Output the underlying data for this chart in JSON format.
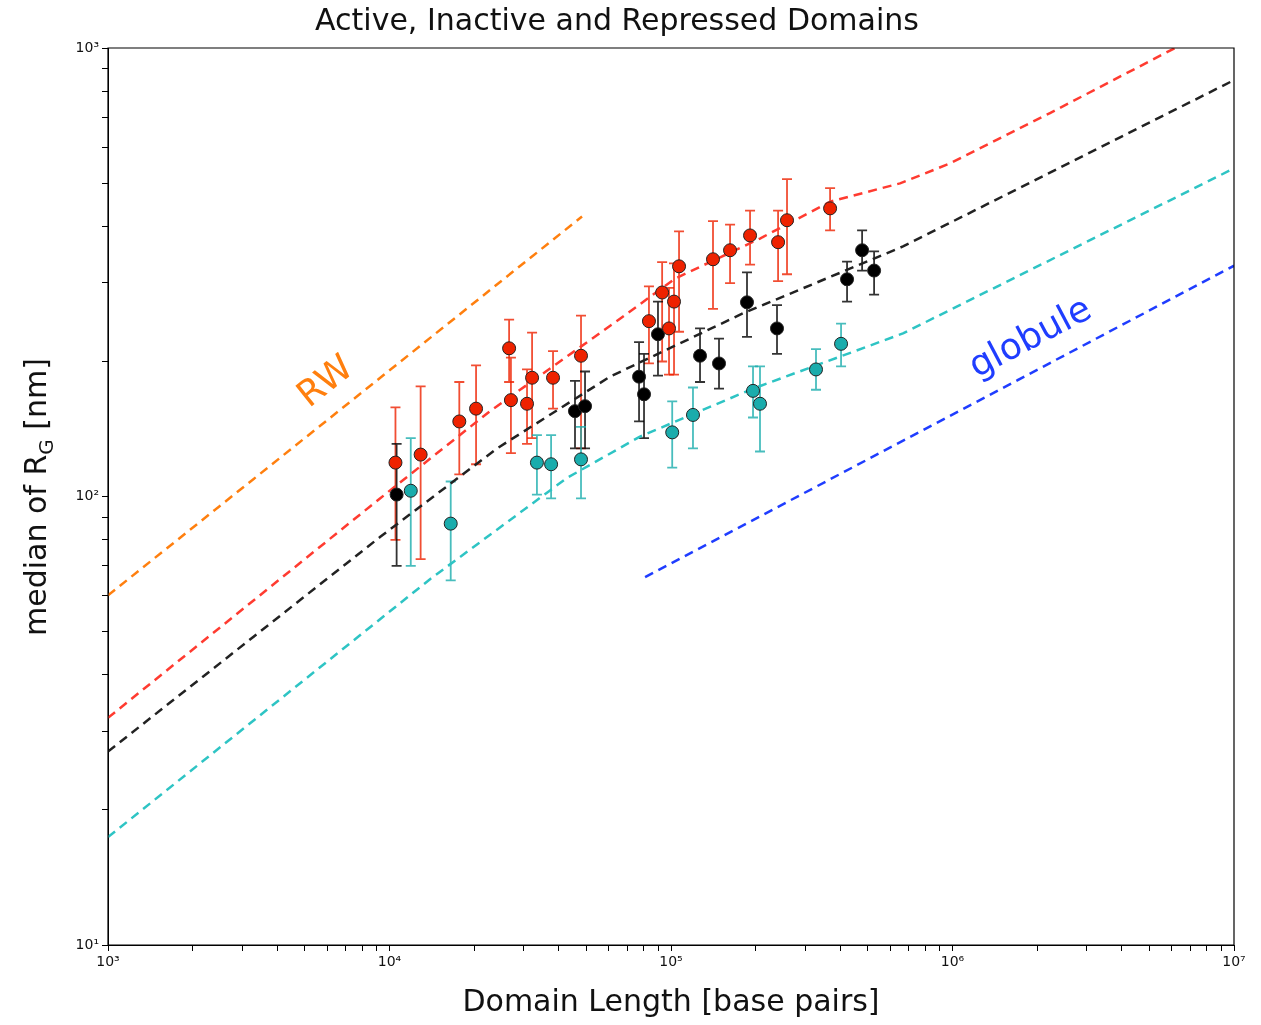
{
  "chart_data": {
    "type": "scatter",
    "title": "Active, Inactive and Repressed Domains",
    "xlabel": "Domain Length [base pairs]",
    "ylabel": "median of R$_{G}$ [nm]",
    "log": "xy",
    "xlim": [
      1000,
      10000000
    ],
    "ylim": [
      10,
      1000
    ],
    "xticks": [
      {
        "value": 1000,
        "label": "10³"
      },
      {
        "value": 2000,
        "label": null
      },
      {
        "value": 3000,
        "label": null
      },
      {
        "value": 4000,
        "label": null
      },
      {
        "value": 5000,
        "label": null
      },
      {
        "value": 6000,
        "label": null
      },
      {
        "value": 7000,
        "label": null
      },
      {
        "value": 8000,
        "label": null
      },
      {
        "value": 9000,
        "label": null
      },
      {
        "value": 10000,
        "label": "10⁴"
      },
      {
        "value": 20000,
        "label": null
      },
      {
        "value": 30000,
        "label": null
      },
      {
        "value": 40000,
        "label": null
      },
      {
        "value": 50000,
        "label": null
      },
      {
        "value": 60000,
        "label": null
      },
      {
        "value": 70000,
        "label": null
      },
      {
        "value": 80000,
        "label": null
      },
      {
        "value": 90000,
        "label": null
      },
      {
        "value": 100000,
        "label": "10⁵"
      },
      {
        "value": 200000,
        "label": null
      },
      {
        "value": 300000,
        "label": null
      },
      {
        "value": 400000,
        "label": null
      },
      {
        "value": 500000,
        "label": null
      },
      {
        "value": 600000,
        "label": null
      },
      {
        "value": 700000,
        "label": null
      },
      {
        "value": 800000,
        "label": null
      },
      {
        "value": 900000,
        "label": null
      },
      {
        "value": 1000000,
        "label": "10⁶"
      },
      {
        "value": 2000000,
        "label": null
      },
      {
        "value": 3000000,
        "label": null
      },
      {
        "value": 4000000,
        "label": null
      },
      {
        "value": 5000000,
        "label": null
      },
      {
        "value": 6000000,
        "label": null
      },
      {
        "value": 7000000,
        "label": null
      },
      {
        "value": 8000000,
        "label": null
      },
      {
        "value": 9000000,
        "label": null
      },
      {
        "value": 10000000,
        "label": "10⁷"
      }
    ],
    "yticks": [
      {
        "value": 10,
        "label": "10¹"
      },
      {
        "value": 20,
        "label": null
      },
      {
        "value": 30,
        "label": null
      },
      {
        "value": 40,
        "label": null
      },
      {
        "value": 50,
        "label": null
      },
      {
        "value": 60,
        "label": null
      },
      {
        "value": 70,
        "label": null
      },
      {
        "value": 80,
        "label": null
      },
      {
        "value": 90,
        "label": null
      },
      {
        "value": 100,
        "label": "10²"
      },
      {
        "value": 200,
        "label": null
      },
      {
        "value": 300,
        "label": null
      },
      {
        "value": 400,
        "label": null
      },
      {
        "value": 500,
        "label": null
      },
      {
        "value": 600,
        "label": null
      },
      {
        "value": 700,
        "label": null
      },
      {
        "value": 800,
        "label": null
      },
      {
        "value": 900,
        "label": null
      },
      {
        "value": 1000,
        "label": "10³"
      }
    ],
    "annotations": [
      {
        "text": "RW",
        "x": 6950,
        "y": 159
      },
      {
        "text": "globule",
        "x": 2130000,
        "y": 196
      }
    ],
    "series": [
      {
        "type": "line",
        "color": "#ff3b30",
        "line_style": "dashed",
        "marker": "none",
        "x": [
          1000,
          9250,
          22760,
          65900,
          103300,
          207100,
          369600,
          651000,
          980000,
          2220000,
          6170000
        ],
        "values": [
          32.1,
          99,
          155,
          249,
          306,
          376,
          455,
          499,
          553,
          716,
          1000
        ]
      },
      {
        "type": "line",
        "color": "#222222",
        "line_style": "dashed",
        "marker": "none",
        "x": [
          1000,
          9250,
          24100,
          60700,
          180000,
          667000,
          10000000
        ],
        "values": [
          27.0,
          81.2,
          128,
          185,
          256,
          361,
          848
        ]
      },
      {
        "type": "line",
        "color": "#2ec4c4",
        "line_style": "dashed",
        "marker": "none",
        "x": [
          1000,
          13930,
          42700,
          77600,
          195600,
          667000,
          10000000
        ],
        "values": [
          17.4,
          65.4,
          110,
          136,
          174,
          231,
          539
        ]
      },
      {
        "type": "line",
        "color": "#ff7f0e",
        "line_style": "dashed",
        "marker": "none",
        "x": [
          1000,
          48300
        ],
        "values": [
          60.2,
          421
        ]
      },
      {
        "type": "line",
        "color": "#1f3dff",
        "line_style": "dashed",
        "marker": "none",
        "x": [
          80900,
          10000000
        ],
        "values": [
          66.1,
          327
        ]
      },
      {
        "type": "scatter",
        "color": "#ee2200",
        "marker": "circle",
        "x": [
          10500,
          12900,
          17700,
          20300,
          26600,
          27000,
          30800,
          32100,
          38100,
          47900,
          83500,
          93000,
          102500,
          98400,
          106800,
          141000,
          162100,
          190900,
          240100,
          258300,
          367400
        ],
        "values": [
          119,
          124,
          147,
          157,
          214,
          164,
          161,
          184,
          184,
          206,
          246,
          285,
          272,
          237,
          326,
          338,
          354,
          382,
          369,
          413,
          439
        ],
        "errors": [
          [
            80,
            158
          ],
          [
            72.5,
            176
          ],
          [
            112,
            180
          ],
          [
            118,
            196
          ],
          [
            180,
            248
          ],
          [
            125,
            204
          ],
          [
            131,
            192
          ],
          [
            135,
            232
          ],
          [
            157,
            211
          ],
          [
            128,
            253
          ],
          [
            198,
            294
          ],
          [
            200,
            333
          ],
          [
            187,
            331
          ],
          [
            187,
            292
          ],
          [
            233,
            390
          ],
          [
            262,
            411
          ],
          [
            299,
            404
          ],
          [
            329,
            434
          ],
          [
            302,
            434
          ],
          [
            313,
            510
          ],
          [
            392,
            487
          ]
        ]
      },
      {
        "type": "scatter",
        "color": "#000000",
        "marker": "circle",
        "x": [
          10600,
          45600,
          49500,
          77000,
          80200,
          89900,
          126800,
          148100,
          186200,
          238000,
          422100,
          477400,
          526600
        ],
        "values": [
          101,
          155,
          159,
          185,
          169,
          230,
          206,
          198,
          271,
          237,
          305,
          354,
          319
        ],
        "errors": [
          [
            70,
            131
          ],
          [
            128,
            181
          ],
          [
            128,
            190
          ],
          [
            147,
            221
          ],
          [
            135,
            208
          ],
          [
            186,
            272
          ],
          [
            180,
            237
          ],
          [
            174,
            225
          ],
          [
            227,
            316
          ],
          [
            208,
            267
          ],
          [
            272,
            334
          ],
          [
            319,
            392
          ],
          [
            282,
            352
          ]
        ]
      },
      {
        "type": "scatter",
        "color": "#1aacac",
        "marker": "circle",
        "x": [
          11900,
          16500,
          33400,
          37500,
          47900,
          101000,
          119700,
          195600,
          207100,
          327400,
          401900
        ],
        "values": [
          103,
          87,
          119,
          118,
          121,
          139,
          152,
          172,
          161,
          192,
          219
        ],
        "errors": [
          [
            70,
            135
          ],
          [
            65,
            108
          ],
          [
            101,
            137
          ],
          [
            99,
            137
          ],
          [
            99,
            143
          ],
          [
            116,
            163
          ],
          [
            128,
            175
          ],
          [
            150,
            195
          ],
          [
            126,
            195
          ],
          [
            173,
            213
          ],
          [
            195,
            243
          ]
        ]
      }
    ]
  }
}
